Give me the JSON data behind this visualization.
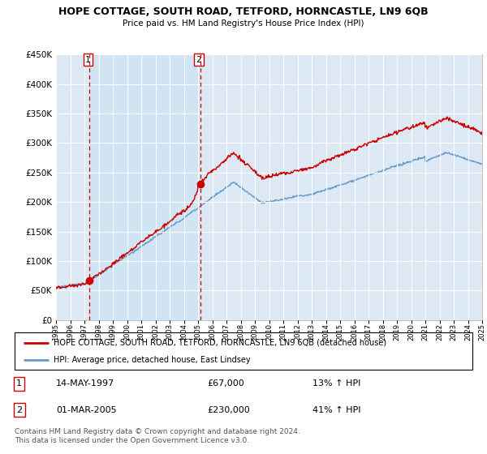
{
  "title": "HOPE COTTAGE, SOUTH ROAD, TETFORD, HORNCASTLE, LN9 6QB",
  "subtitle": "Price paid vs. HM Land Registry's House Price Index (HPI)",
  "legend_label_red": "HOPE COTTAGE, SOUTH ROAD, TETFORD, HORNCASTLE, LN9 6QB (detached house)",
  "legend_label_blue": "HPI: Average price, detached house, East Lindsey",
  "footer1": "Contains HM Land Registry data © Crown copyright and database right 2024.",
  "footer2": "This data is licensed under the Open Government Licence v3.0.",
  "transaction1_date": "14-MAY-1997",
  "transaction1_price": "£67,000",
  "transaction1_hpi": "13% ↑ HPI",
  "transaction1_year": 1997.37,
  "transaction1_value": 67000,
  "transaction2_date": "01-MAR-2005",
  "transaction2_price": "£230,000",
  "transaction2_hpi": "41% ↑ HPI",
  "transaction2_year": 2005.17,
  "transaction2_value": 230000,
  "ylim": [
    0,
    450000
  ],
  "yticks": [
    0,
    50000,
    100000,
    150000,
    200000,
    250000,
    300000,
    350000,
    400000,
    450000
  ],
  "xlim_start": 1995,
  "xlim_end": 2025,
  "background_color": "#dce9f5",
  "shade_color": "#d0e4f4",
  "red_color": "#cc0000",
  "blue_color": "#6699cc",
  "grid_color": "#ffffff"
}
